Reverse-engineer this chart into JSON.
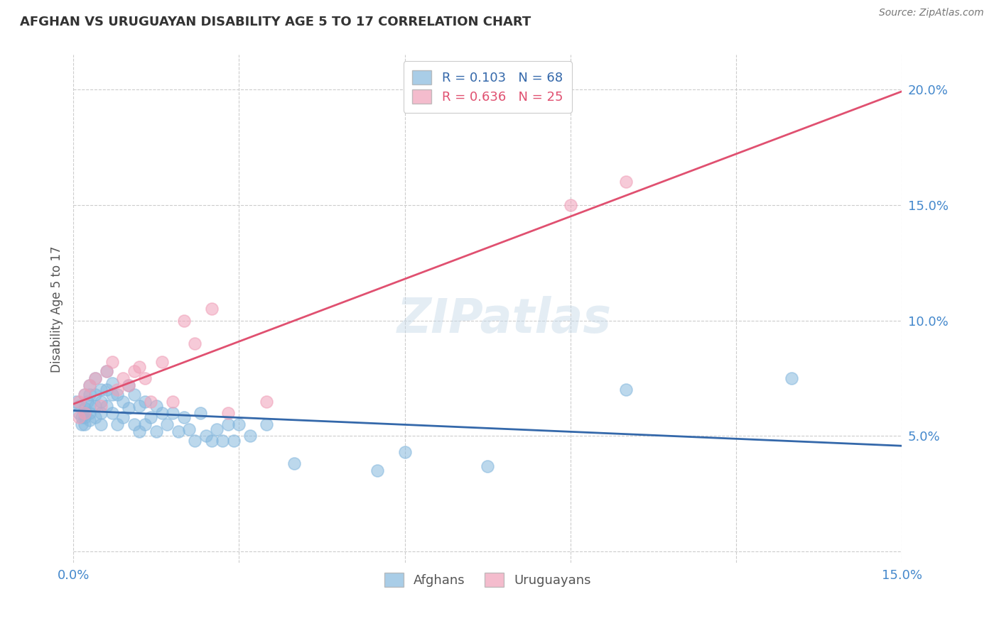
{
  "title": "AFGHAN VS URUGUAYAN DISABILITY AGE 5 TO 17 CORRELATION CHART",
  "source": "Source: ZipAtlas.com",
  "ylabel_label": "Disability Age 5 to 17",
  "x_min": 0.0,
  "x_max": 0.15,
  "y_min": -0.005,
  "y_max": 0.215,
  "x_ticks": [
    0.0,
    0.03,
    0.06,
    0.09,
    0.12,
    0.15
  ],
  "x_tick_labels": [
    "0.0%",
    "",
    "",
    "",
    "",
    "15.0%"
  ],
  "y_ticks": [
    0.0,
    0.05,
    0.1,
    0.15,
    0.2
  ],
  "y_tick_labels": [
    "",
    "5.0%",
    "10.0%",
    "15.0%",
    "20.0%"
  ],
  "legend_R_afghan": "R = 0.103",
  "legend_N_afghan": "N = 68",
  "legend_R_uruguayan": "R = 0.636",
  "legend_N_uruguayan": "N = 25",
  "afghan_color": "#85B8DE",
  "uruguayan_color": "#F0A0B8",
  "afghan_line_color": "#3468AA",
  "uruguayan_line_color": "#E05070",
  "background_color": "#FFFFFF",
  "afghans_x": [
    0.0005,
    0.001,
    0.001,
    0.0015,
    0.0015,
    0.002,
    0.002,
    0.002,
    0.002,
    0.002,
    0.0025,
    0.003,
    0.003,
    0.003,
    0.003,
    0.003,
    0.004,
    0.004,
    0.004,
    0.004,
    0.005,
    0.005,
    0.005,
    0.005,
    0.006,
    0.006,
    0.006,
    0.007,
    0.007,
    0.007,
    0.008,
    0.008,
    0.009,
    0.009,
    0.01,
    0.01,
    0.011,
    0.011,
    0.012,
    0.012,
    0.013,
    0.013,
    0.014,
    0.015,
    0.015,
    0.016,
    0.017,
    0.018,
    0.019,
    0.02,
    0.021,
    0.022,
    0.023,
    0.024,
    0.025,
    0.026,
    0.027,
    0.028,
    0.029,
    0.03,
    0.032,
    0.035,
    0.04,
    0.055,
    0.06,
    0.075,
    0.1,
    0.13
  ],
  "afghans_y": [
    0.065,
    0.063,
    0.06,
    0.058,
    0.055,
    0.068,
    0.062,
    0.06,
    0.058,
    0.055,
    0.065,
    0.072,
    0.068,
    0.063,
    0.06,
    0.057,
    0.075,
    0.068,
    0.063,
    0.058,
    0.07,
    0.065,
    0.06,
    0.055,
    0.078,
    0.07,
    0.063,
    0.073,
    0.068,
    0.06,
    0.068,
    0.055,
    0.065,
    0.058,
    0.072,
    0.062,
    0.068,
    0.055,
    0.063,
    0.052,
    0.065,
    0.055,
    0.058,
    0.063,
    0.052,
    0.06,
    0.055,
    0.06,
    0.052,
    0.058,
    0.053,
    0.048,
    0.06,
    0.05,
    0.048,
    0.053,
    0.048,
    0.055,
    0.048,
    0.055,
    0.05,
    0.055,
    0.038,
    0.035,
    0.043,
    0.037,
    0.07,
    0.075
  ],
  "uruguayans_x": [
    0.001,
    0.001,
    0.002,
    0.002,
    0.003,
    0.004,
    0.005,
    0.006,
    0.007,
    0.008,
    0.009,
    0.01,
    0.011,
    0.012,
    0.013,
    0.014,
    0.016,
    0.018,
    0.02,
    0.022,
    0.025,
    0.028,
    0.035,
    0.09,
    0.1
  ],
  "uruguayans_y": [
    0.065,
    0.058,
    0.068,
    0.06,
    0.072,
    0.075,
    0.063,
    0.078,
    0.082,
    0.07,
    0.075,
    0.072,
    0.078,
    0.08,
    0.075,
    0.065,
    0.082,
    0.065,
    0.1,
    0.09,
    0.105,
    0.06,
    0.065,
    0.15,
    0.16
  ]
}
